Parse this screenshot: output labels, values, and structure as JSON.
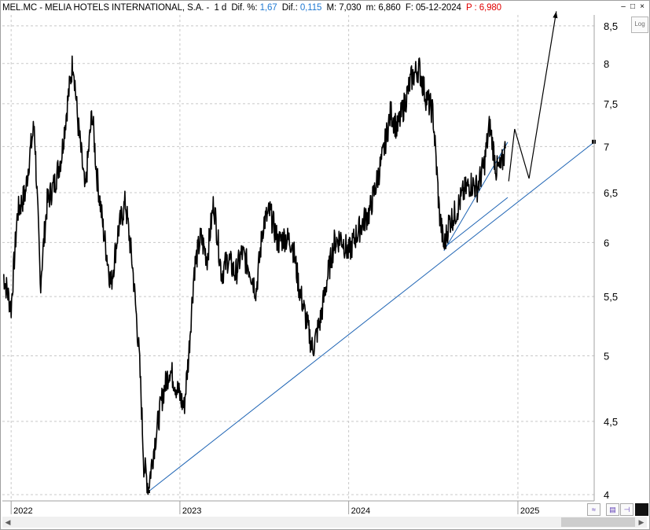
{
  "header": {
    "ticker": "MEL.MC - MELIA HOTELS INTERNATIONAL, S.A. -",
    "period": "1 d",
    "dif_pct_label": "Dif. %:",
    "dif_pct_value": "1,67",
    "dif_label": "Dif.:",
    "dif_value": "0,115",
    "max_label": "M:",
    "max_value": "7,030",
    "min_label": "m:",
    "min_value": "6,860",
    "date_label": "F:",
    "date_value": "05-12-2024",
    "price_label": "P :",
    "price_value": "6,980"
  },
  "log_button": "Log",
  "colors": {
    "price": "#000000",
    "trendline": "#1e64b4",
    "grid": "#c8c8c8",
    "header_blue": "#1e78d2",
    "header_red": "#e00000"
  },
  "chart_data": {
    "type": "line",
    "scale": "log",
    "title": "",
    "xlabel": "",
    "ylabel": "",
    "x_tick_labels": [
      "2022",
      "2023",
      "2024",
      "2025"
    ],
    "y_tick_labels": [
      "4",
      "4,5",
      "5",
      "5,5",
      "6",
      "6,5",
      "7",
      "7,5",
      "8",
      "8,5"
    ],
    "y_ticks": [
      4,
      4.5,
      5,
      5.5,
      6,
      6.5,
      7,
      7.5,
      8,
      8.5
    ],
    "xlim": [
      "2021-12-13",
      "2025-06-15"
    ],
    "ylim": [
      3.96,
      8.65
    ],
    "grid": true,
    "series": [
      {
        "values": [
          [
            "2021-12-15",
            5.7
          ],
          [
            "2022-01-01",
            5.4
          ],
          [
            "2022-01-15",
            6.3
          ],
          [
            "2022-02-01",
            6.5
          ],
          [
            "2022-02-10",
            6.9
          ],
          [
            "2022-02-20",
            7.25
          ],
          [
            "2022-03-05",
            5.6
          ],
          [
            "2022-03-20",
            6.4
          ],
          [
            "2022-04-05",
            6.6
          ],
          [
            "2022-04-20",
            6.9
          ],
          [
            "2022-05-05",
            7.6
          ],
          [
            "2022-05-15",
            8.05
          ],
          [
            "2022-05-25",
            7.3
          ],
          [
            "2022-06-10",
            6.5
          ],
          [
            "2022-06-25",
            7.4
          ],
          [
            "2022-07-05",
            6.7
          ],
          [
            "2022-07-20",
            6.1
          ],
          [
            "2022-08-05",
            5.6
          ],
          [
            "2022-08-20",
            6.1
          ],
          [
            "2022-09-05",
            6.4
          ],
          [
            "2022-09-20",
            5.8
          ],
          [
            "2022-10-05",
            5.0
          ],
          [
            "2022-10-15",
            4.2
          ],
          [
            "2022-10-25",
            4.05
          ],
          [
            "2022-11-10",
            4.4
          ],
          [
            "2022-11-25",
            4.7
          ],
          [
            "2022-12-10",
            4.9
          ],
          [
            "2022-12-25",
            4.75
          ],
          [
            "2023-01-10",
            4.6
          ],
          [
            "2023-01-20",
            5.0
          ],
          [
            "2023-02-01",
            5.75
          ],
          [
            "2023-02-15",
            6.05
          ],
          [
            "2023-03-01",
            5.85
          ],
          [
            "2023-03-15",
            6.4
          ],
          [
            "2023-04-01",
            5.7
          ],
          [
            "2023-04-15",
            5.85
          ],
          [
            "2023-05-01",
            5.7
          ],
          [
            "2023-05-15",
            5.9
          ],
          [
            "2023-06-01",
            5.75
          ],
          [
            "2023-06-15",
            5.55
          ],
          [
            "2023-07-01",
            6.2
          ],
          [
            "2023-07-15",
            6.3
          ],
          [
            "2023-08-01",
            6.0
          ],
          [
            "2023-08-15",
            6.05
          ],
          [
            "2023-09-01",
            6.0
          ],
          [
            "2023-09-15",
            5.6
          ],
          [
            "2023-10-01",
            5.3
          ],
          [
            "2023-10-15",
            5.05
          ],
          [
            "2023-11-01",
            5.3
          ],
          [
            "2023-11-15",
            5.65
          ],
          [
            "2023-12-01",
            6.0
          ],
          [
            "2023-12-15",
            6.05
          ],
          [
            "2024-01-01",
            5.9
          ],
          [
            "2024-01-15",
            6.05
          ],
          [
            "2024-02-01",
            6.2
          ],
          [
            "2024-02-15",
            6.3
          ],
          [
            "2024-03-01",
            6.6
          ],
          [
            "2024-03-15",
            6.9
          ],
          [
            "2024-04-01",
            7.4
          ],
          [
            "2024-04-15",
            7.2
          ],
          [
            "2024-05-01",
            7.5
          ],
          [
            "2024-05-15",
            7.8
          ],
          [
            "2024-06-01",
            7.95
          ],
          [
            "2024-06-15",
            7.6
          ],
          [
            "2024-07-01",
            7.4
          ],
          [
            "2024-07-15",
            6.3
          ],
          [
            "2024-07-25",
            5.95
          ],
          [
            "2024-08-05",
            6.2
          ],
          [
            "2024-08-20",
            6.3
          ],
          [
            "2024-09-05",
            6.5
          ],
          [
            "2024-09-20",
            6.6
          ],
          [
            "2024-10-05",
            6.55
          ],
          [
            "2024-10-20",
            6.8
          ],
          [
            "2024-11-01",
            7.25
          ],
          [
            "2024-11-15",
            6.75
          ],
          [
            "2024-11-25",
            6.75
          ],
          [
            "2024-12-05",
            6.98
          ]
        ]
      }
    ],
    "trendlines": [
      {
        "from": [
          "2022-10-25",
          4.02
        ],
        "to": [
          "2025-06-15",
          7.05
        ]
      },
      {
        "from": [
          "2024-07-25",
          5.92
        ],
        "to": [
          "2024-12-10",
          7.05
        ]
      },
      {
        "from": [
          "2024-07-25",
          5.95
        ],
        "to": [
          "2024-12-10",
          6.45
        ]
      }
    ],
    "projection": [
      [
        "2024-12-12",
        6.62
      ],
      [
        "2024-12-25",
        7.2
      ],
      [
        "2025-01-25",
        6.65
      ],
      [
        "2025-03-25",
        8.7
      ]
    ]
  }
}
